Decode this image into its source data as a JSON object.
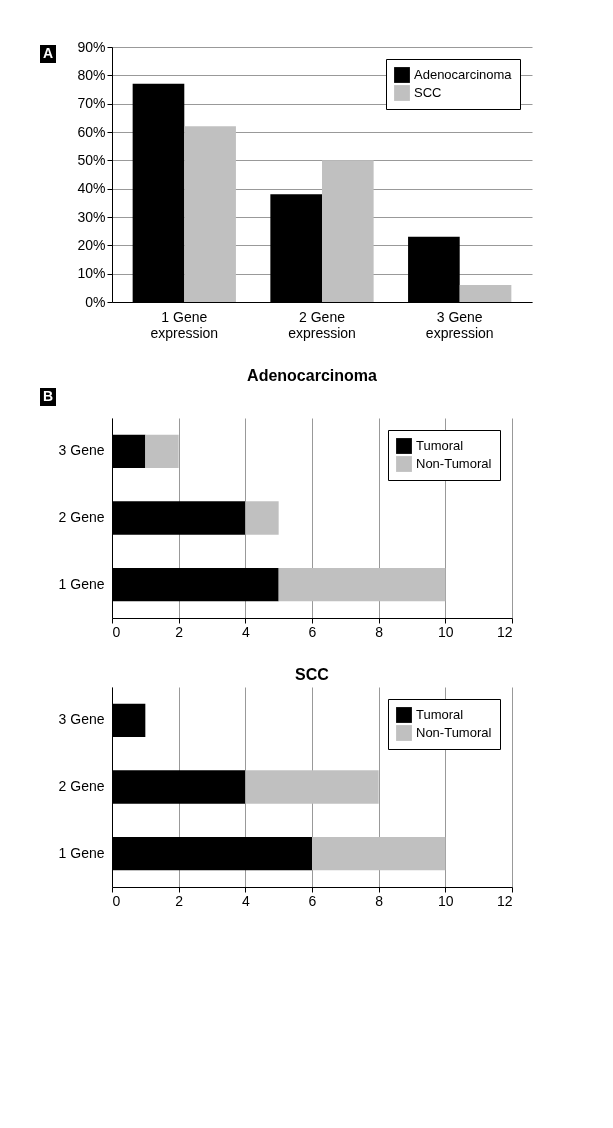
{
  "chart_data": [
    {
      "type": "bar",
      "annotations": [
        "A"
      ],
      "categories": [
        "1 Gene expression",
        "2 Gene expression",
        "3 Gene expression"
      ],
      "series": [
        {
          "name": "Adenocarcinoma",
          "color": "#000000",
          "values": [
            77,
            38,
            23
          ]
        },
        {
          "name": "SCC",
          "color": "#c0c0c0",
          "values": [
            62,
            50,
            6
          ]
        }
      ],
      "ylim": [
        0,
        90
      ],
      "yticks": [
        {
          "value": 0,
          "label": "0%"
        },
        {
          "value": 10,
          "label": "10%"
        },
        {
          "value": 20,
          "label": "20%"
        },
        {
          "value": 30,
          "label": "30%"
        },
        {
          "value": 40,
          "label": "40%"
        },
        {
          "value": 50,
          "label": "50%"
        },
        {
          "value": 60,
          "label": "60%"
        },
        {
          "value": 70,
          "label": "70%"
        },
        {
          "value": 80,
          "label": "80%"
        },
        {
          "value": 90,
          "label": "90%"
        }
      ],
      "grid": "y",
      "legend": "top right"
    },
    {
      "type": "bar",
      "title": "Adenocarcinoma",
      "annotations": [
        "B"
      ],
      "orientation": "horizontal",
      "stacked": true,
      "categories": [
        "3 Gene",
        "2 Gene",
        "1 Gene"
      ],
      "series": [
        {
          "name": "Tumoral",
          "color": "#000000",
          "values": [
            1,
            4,
            5
          ]
        },
        {
          "name": "Non-Tumoral",
          "color": "#c0c0c0",
          "values": [
            1,
            1,
            5
          ]
        }
      ],
      "xlim": [
        0,
        12
      ],
      "xticks": [
        0,
        2,
        4,
        6,
        8,
        10,
        12
      ],
      "grid": "x",
      "legend": "top right"
    },
    {
      "type": "bar",
      "title": "SCC",
      "orientation": "horizontal",
      "stacked": true,
      "categories": [
        "3 Gene",
        "2 Gene",
        "1 Gene"
      ],
      "series": [
        {
          "name": "Tumoral",
          "color": "#000000",
          "values": [
            1,
            4,
            6
          ]
        },
        {
          "name": "Non-Tumoral",
          "color": "#c0c0c0",
          "values": [
            0,
            4,
            4
          ]
        }
      ],
      "xlim": [
        0,
        12
      ],
      "xticks": [
        0,
        2,
        4,
        6,
        8,
        10,
        12
      ],
      "grid": "x",
      "legend": "top right"
    }
  ]
}
